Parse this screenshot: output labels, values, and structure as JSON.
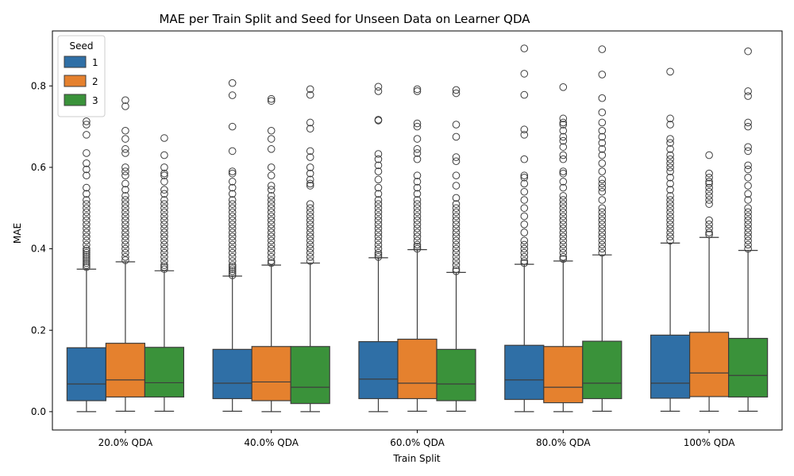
{
  "chart_data": {
    "type": "box",
    "title": "MAE per Train Split and Seed for Unseen Data on Learner QDA",
    "xlabel": "Train Split",
    "ylabel": "MAE",
    "categories": [
      "20.0% QDA",
      "40.0% QDA",
      "60.0% QDA",
      "80.0% QDA",
      "100% QDA"
    ],
    "ylim": [
      -0.045,
      0.935
    ],
    "yticks": [
      0.0,
      0.2,
      0.4,
      0.6,
      0.8
    ],
    "ytick_labels": [
      "0.0",
      "0.2",
      "0.4",
      "0.6",
      "0.8"
    ],
    "grid": false,
    "legend": {
      "title": "Seed",
      "position": "top-left"
    },
    "series": [
      {
        "name": "1",
        "color": "#2f6fa6",
        "boxes": [
          {
            "min": 0.0,
            "q1": 0.027,
            "median": 0.068,
            "q3": 0.157,
            "max": 0.35,
            "outliers": [
              0.355,
              0.36,
              0.365,
              0.37,
              0.375,
              0.38,
              0.385,
              0.39,
              0.395,
              0.4,
              0.41,
              0.42,
              0.43,
              0.44,
              0.45,
              0.46,
              0.47,
              0.48,
              0.49,
              0.5,
              0.51,
              0.52,
              0.535,
              0.55,
              0.58,
              0.595,
              0.61,
              0.635,
              0.68,
              0.705,
              0.713
            ]
          },
          {
            "min": 0.001,
            "q1": 0.032,
            "median": 0.07,
            "q3": 0.153,
            "max": 0.333,
            "outliers": [
              0.335,
              0.34,
              0.345,
              0.35,
              0.355,
              0.36,
              0.37,
              0.38,
              0.39,
              0.4,
              0.41,
              0.42,
              0.43,
              0.44,
              0.45,
              0.46,
              0.47,
              0.48,
              0.49,
              0.5,
              0.51,
              0.52,
              0.535,
              0.55,
              0.565,
              0.585,
              0.59,
              0.64,
              0.7,
              0.777,
              0.807
            ]
          },
          {
            "min": 0.0,
            "q1": 0.032,
            "median": 0.08,
            "q3": 0.172,
            "max": 0.378,
            "outliers": [
              0.38,
              0.385,
              0.39,
              0.4,
              0.41,
              0.42,
              0.43,
              0.44,
              0.45,
              0.46,
              0.47,
              0.48,
              0.49,
              0.5,
              0.51,
              0.52,
              0.535,
              0.55,
              0.57,
              0.59,
              0.605,
              0.62,
              0.633,
              0.715,
              0.717,
              0.787,
              0.798
            ]
          },
          {
            "min": 0.0,
            "q1": 0.03,
            "median": 0.078,
            "q3": 0.163,
            "max": 0.362,
            "outliers": [
              0.365,
              0.37,
              0.38,
              0.39,
              0.4,
              0.41,
              0.42,
              0.44,
              0.46,
              0.48,
              0.5,
              0.52,
              0.54,
              0.56,
              0.575,
              0.58,
              0.62,
              0.68,
              0.693,
              0.778,
              0.83,
              0.892
            ]
          },
          {
            "min": 0.001,
            "q1": 0.033,
            "median": 0.07,
            "q3": 0.188,
            "max": 0.414,
            "outliers": [
              0.42,
              0.43,
              0.44,
              0.45,
              0.46,
              0.47,
              0.48,
              0.49,
              0.5,
              0.51,
              0.52,
              0.53,
              0.545,
              0.56,
              0.575,
              0.59,
              0.6,
              0.61,
              0.62,
              0.63,
              0.645,
              0.66,
              0.67,
              0.705,
              0.72,
              0.835
            ]
          }
        ]
      },
      {
        "name": "2",
        "color": "#e5812e",
        "boxes": [
          {
            "min": 0.001,
            "q1": 0.036,
            "median": 0.078,
            "q3": 0.168,
            "max": 0.368,
            "outliers": [
              0.372,
              0.38,
              0.39,
              0.4,
              0.41,
              0.42,
              0.43,
              0.44,
              0.45,
              0.46,
              0.47,
              0.48,
              0.49,
              0.5,
              0.51,
              0.52,
              0.53,
              0.545,
              0.56,
              0.58,
              0.59,
              0.6,
              0.635,
              0.645,
              0.67,
              0.69,
              0.75,
              0.765
            ]
          },
          {
            "min": 0.0,
            "q1": 0.027,
            "median": 0.073,
            "q3": 0.16,
            "max": 0.36,
            "outliers": [
              0.365,
              0.37,
              0.38,
              0.39,
              0.4,
              0.41,
              0.42,
              0.43,
              0.44,
              0.45,
              0.46,
              0.47,
              0.48,
              0.49,
              0.5,
              0.51,
              0.52,
              0.53,
              0.545,
              0.555,
              0.58,
              0.6,
              0.645,
              0.67,
              0.69,
              0.763,
              0.768
            ]
          },
          {
            "min": 0.001,
            "q1": 0.032,
            "median": 0.07,
            "q3": 0.178,
            "max": 0.398,
            "outliers": [
              0.4,
              0.405,
              0.41,
              0.42,
              0.43,
              0.44,
              0.45,
              0.46,
              0.47,
              0.48,
              0.49,
              0.5,
              0.51,
              0.52,
              0.535,
              0.55,
              0.565,
              0.58,
              0.62,
              0.635,
              0.645,
              0.67,
              0.7,
              0.708,
              0.787,
              0.792
            ]
          },
          {
            "min": 0.0,
            "q1": 0.022,
            "median": 0.06,
            "q3": 0.16,
            "max": 0.37,
            "outliers": [
              0.375,
              0.38,
              0.39,
              0.4,
              0.41,
              0.42,
              0.43,
              0.44,
              0.45,
              0.46,
              0.47,
              0.48,
              0.49,
              0.5,
              0.51,
              0.52,
              0.53,
              0.55,
              0.565,
              0.585,
              0.59,
              0.62,
              0.63,
              0.65,
              0.665,
              0.675,
              0.69,
              0.705,
              0.71,
              0.72,
              0.797
            ]
          },
          {
            "min": 0.001,
            "q1": 0.037,
            "median": 0.095,
            "q3": 0.195,
            "max": 0.428,
            "outliers": [
              0.435,
              0.44,
              0.45,
              0.46,
              0.47,
              0.51,
              0.52,
              0.53,
              0.54,
              0.55,
              0.56,
              0.565,
              0.575,
              0.585,
              0.63
            ]
          }
        ]
      },
      {
        "name": "3",
        "color": "#3a923a",
        "boxes": [
          {
            "min": 0.001,
            "q1": 0.036,
            "median": 0.071,
            "q3": 0.158,
            "max": 0.346,
            "outliers": [
              0.35,
              0.355,
              0.36,
              0.37,
              0.38,
              0.39,
              0.4,
              0.41,
              0.42,
              0.43,
              0.44,
              0.45,
              0.46,
              0.47,
              0.48,
              0.49,
              0.5,
              0.51,
              0.52,
              0.535,
              0.545,
              0.565,
              0.58,
              0.585,
              0.6,
              0.63,
              0.672
            ]
          },
          {
            "min": 0.0,
            "q1": 0.02,
            "median": 0.06,
            "q3": 0.16,
            "max": 0.365,
            "outliers": [
              0.37,
              0.38,
              0.39,
              0.4,
              0.41,
              0.42,
              0.43,
              0.44,
              0.45,
              0.46,
              0.47,
              0.48,
              0.49,
              0.5,
              0.51,
              0.555,
              0.56,
              0.57,
              0.585,
              0.6,
              0.625,
              0.64,
              0.695,
              0.71,
              0.778,
              0.792
            ]
          },
          {
            "min": 0.001,
            "q1": 0.027,
            "median": 0.068,
            "q3": 0.153,
            "max": 0.342,
            "outliers": [
              0.345,
              0.35,
              0.36,
              0.37,
              0.38,
              0.39,
              0.4,
              0.41,
              0.42,
              0.43,
              0.44,
              0.45,
              0.46,
              0.47,
              0.48,
              0.49,
              0.5,
              0.51,
              0.525,
              0.555,
              0.58,
              0.615,
              0.625,
              0.675,
              0.705,
              0.782,
              0.79
            ]
          },
          {
            "min": 0.001,
            "q1": 0.032,
            "median": 0.07,
            "q3": 0.173,
            "max": 0.385,
            "outliers": [
              0.39,
              0.4,
              0.41,
              0.42,
              0.43,
              0.44,
              0.45,
              0.46,
              0.47,
              0.48,
              0.49,
              0.5,
              0.52,
              0.54,
              0.55,
              0.56,
              0.57,
              0.59,
              0.61,
              0.63,
              0.645,
              0.66,
              0.675,
              0.69,
              0.71,
              0.735,
              0.77,
              0.828,
              0.89
            ]
          },
          {
            "min": 0.001,
            "q1": 0.036,
            "median": 0.089,
            "q3": 0.18,
            "max": 0.396,
            "outliers": [
              0.4,
              0.41,
              0.42,
              0.43,
              0.44,
              0.45,
              0.46,
              0.47,
              0.48,
              0.49,
              0.5,
              0.52,
              0.535,
              0.555,
              0.575,
              0.595,
              0.605,
              0.64,
              0.65,
              0.7,
              0.71,
              0.775,
              0.787,
              0.885
            ]
          }
        ]
      }
    ]
  }
}
